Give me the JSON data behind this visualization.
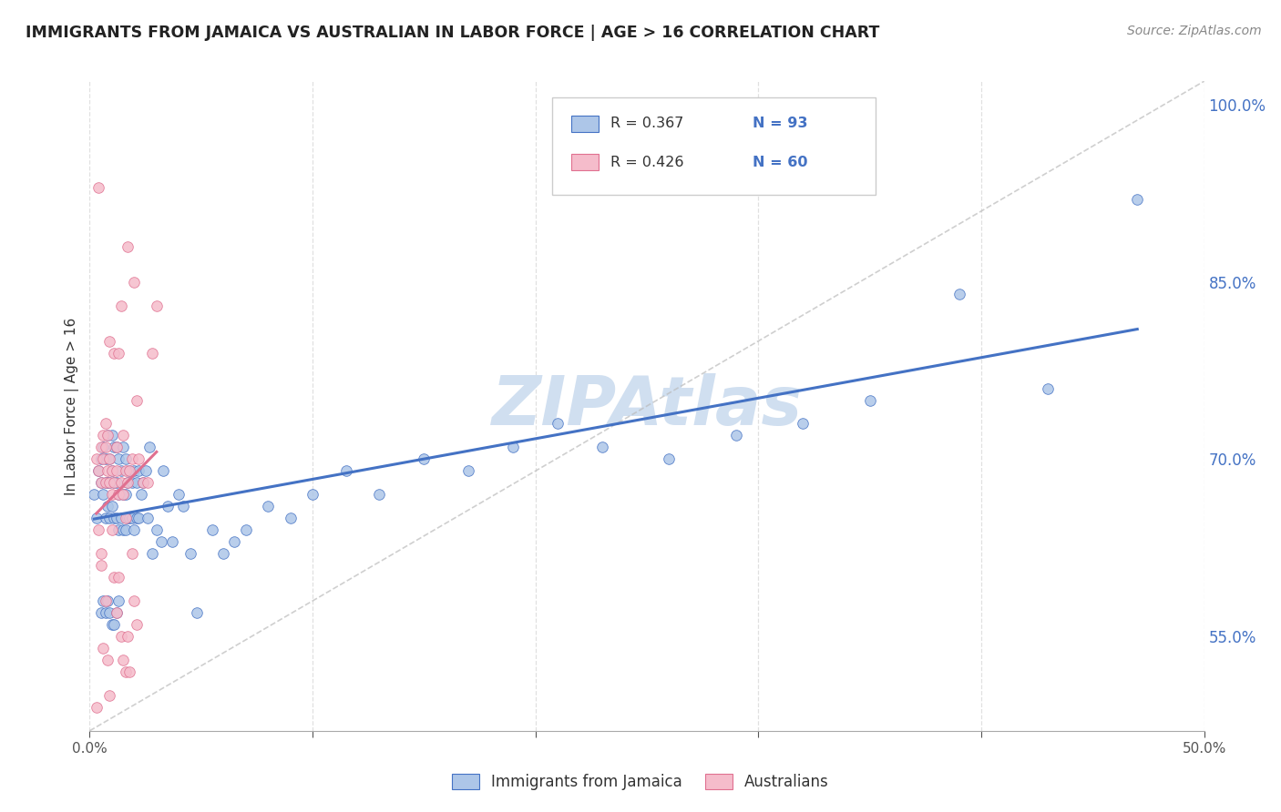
{
  "title": "IMMIGRANTS FROM JAMAICA VS AUSTRALIAN IN LABOR FORCE | AGE > 16 CORRELATION CHART",
  "source": "Source: ZipAtlas.com",
  "ylabel": "In Labor Force | Age > 16",
  "legend_label1": "Immigrants from Jamaica",
  "legend_label2": "Australians",
  "R1": 0.367,
  "N1": 93,
  "R2": 0.426,
  "N2": 60,
  "color1": "#adc6e8",
  "color2": "#f5bccb",
  "line1_color": "#4472c4",
  "line2_color": "#e07090",
  "watermark": "ZIPAtlas",
  "watermark_color": "#d0dff0",
  "background_color": "#ffffff",
  "grid_color": "#dddddd",
  "xlim": [
    0.0,
    0.5
  ],
  "ylim": [
    0.47,
    1.02
  ],
  "ytick_positions": [
    0.55,
    0.7,
    0.85,
    1.0
  ],
  "ytick_labels": [
    "55.0%",
    "70.0%",
    "85.0%",
    "100.0%"
  ],
  "scatter1_x": [
    0.002,
    0.003,
    0.004,
    0.005,
    0.005,
    0.006,
    0.006,
    0.007,
    0.007,
    0.007,
    0.008,
    0.008,
    0.008,
    0.009,
    0.009,
    0.009,
    0.01,
    0.01,
    0.01,
    0.011,
    0.011,
    0.011,
    0.012,
    0.012,
    0.012,
    0.013,
    0.013,
    0.013,
    0.014,
    0.014,
    0.015,
    0.015,
    0.015,
    0.016,
    0.016,
    0.016,
    0.017,
    0.017,
    0.018,
    0.018,
    0.019,
    0.019,
    0.02,
    0.02,
    0.021,
    0.021,
    0.022,
    0.022,
    0.023,
    0.024,
    0.025,
    0.026,
    0.027,
    0.028,
    0.03,
    0.032,
    0.033,
    0.035,
    0.037,
    0.04,
    0.042,
    0.045,
    0.048,
    0.055,
    0.06,
    0.065,
    0.07,
    0.08,
    0.09,
    0.1,
    0.115,
    0.13,
    0.15,
    0.17,
    0.19,
    0.21,
    0.23,
    0.26,
    0.29,
    0.32,
    0.35,
    0.39,
    0.43,
    0.47,
    0.005,
    0.006,
    0.007,
    0.008,
    0.009,
    0.01,
    0.011,
    0.012,
    0.013
  ],
  "scatter1_y": [
    0.67,
    0.65,
    0.69,
    0.68,
    0.7,
    0.67,
    0.71,
    0.65,
    0.68,
    0.7,
    0.66,
    0.68,
    0.72,
    0.65,
    0.68,
    0.7,
    0.66,
    0.69,
    0.72,
    0.65,
    0.68,
    0.71,
    0.65,
    0.68,
    0.71,
    0.64,
    0.67,
    0.7,
    0.65,
    0.69,
    0.64,
    0.67,
    0.71,
    0.64,
    0.67,
    0.7,
    0.65,
    0.68,
    0.65,
    0.69,
    0.65,
    0.68,
    0.64,
    0.69,
    0.65,
    0.68,
    0.65,
    0.69,
    0.67,
    0.68,
    0.69,
    0.65,
    0.71,
    0.62,
    0.64,
    0.63,
    0.69,
    0.66,
    0.63,
    0.67,
    0.66,
    0.62,
    0.57,
    0.64,
    0.62,
    0.63,
    0.64,
    0.66,
    0.65,
    0.67,
    0.69,
    0.67,
    0.7,
    0.69,
    0.71,
    0.73,
    0.71,
    0.7,
    0.72,
    0.73,
    0.75,
    0.84,
    0.76,
    0.92,
    0.57,
    0.58,
    0.57,
    0.58,
    0.57,
    0.56,
    0.56,
    0.57,
    0.58
  ],
  "scatter2_x": [
    0.003,
    0.004,
    0.004,
    0.005,
    0.005,
    0.006,
    0.006,
    0.007,
    0.007,
    0.007,
    0.008,
    0.008,
    0.009,
    0.009,
    0.009,
    0.01,
    0.01,
    0.011,
    0.011,
    0.012,
    0.012,
    0.013,
    0.013,
    0.014,
    0.014,
    0.015,
    0.015,
    0.016,
    0.016,
    0.017,
    0.017,
    0.018,
    0.019,
    0.02,
    0.021,
    0.022,
    0.024,
    0.026,
    0.028,
    0.03,
    0.005,
    0.006,
    0.007,
    0.008,
    0.009,
    0.01,
    0.011,
    0.012,
    0.013,
    0.014,
    0.015,
    0.016,
    0.017,
    0.018,
    0.019,
    0.02,
    0.021,
    0.003,
    0.004,
    0.005
  ],
  "scatter2_y": [
    0.7,
    0.69,
    0.93,
    0.71,
    0.68,
    0.7,
    0.72,
    0.68,
    0.71,
    0.73,
    0.69,
    0.72,
    0.7,
    0.68,
    0.8,
    0.67,
    0.69,
    0.79,
    0.68,
    0.69,
    0.71,
    0.79,
    0.67,
    0.68,
    0.83,
    0.67,
    0.72,
    0.69,
    0.65,
    0.88,
    0.68,
    0.69,
    0.7,
    0.85,
    0.75,
    0.7,
    0.68,
    0.68,
    0.79,
    0.83,
    0.61,
    0.54,
    0.58,
    0.53,
    0.5,
    0.64,
    0.6,
    0.57,
    0.6,
    0.55,
    0.53,
    0.52,
    0.55,
    0.52,
    0.62,
    0.58,
    0.56,
    0.49,
    0.64,
    0.62
  ]
}
